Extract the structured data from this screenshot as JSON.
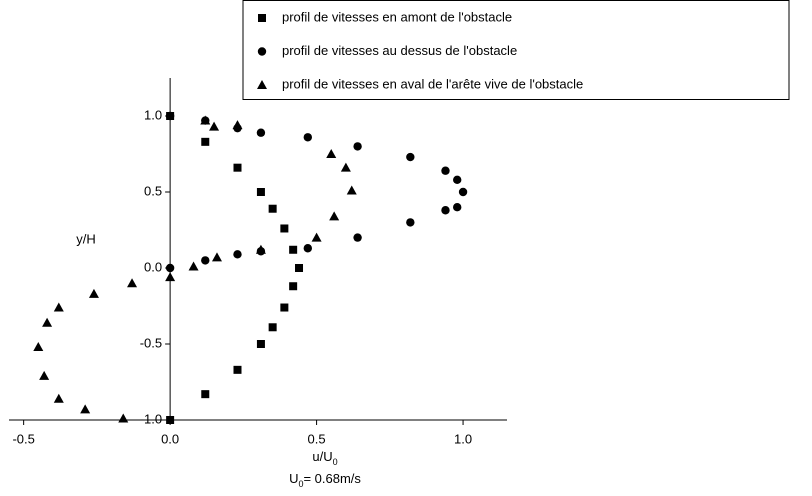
{
  "chart_data": {
    "type": "scatter",
    "xlabel": {
      "main": "u/U",
      "sub": "0"
    },
    "subtitle": {
      "main": "U",
      "sub": "0",
      "rest": "= 0.68m/s"
    },
    "ylabel": "y/H",
    "xlim": [
      -0.55,
      1.15
    ],
    "ylim": [
      -1.0,
      1.25
    ],
    "xticks": [
      -0.5,
      {
        "value": 0,
        "label": "0.0"
      },
      0.5,
      {
        "value": 1,
        "label": "1.0"
      }
    ],
    "yticks": [
      {
        "value": -1,
        "label": "-1.0"
      },
      -0.5,
      {
        "value": 0,
        "label": "0.0"
      },
      0.5,
      {
        "value": 1,
        "label": "1.0"
      }
    ],
    "legend": "top-right",
    "series": [
      {
        "name": "profil de vitesses en amont de l'obstacle",
        "color": "#000000",
        "marker": "square",
        "x": [
          0,
          0.12,
          0.23,
          0.31,
          0.35,
          0.39,
          0.42,
          0.44,
          0.42,
          0.39,
          0.35,
          0.31,
          0.23,
          0.12,
          0
        ],
        "values": [
          1.0,
          0.83,
          0.66,
          0.5,
          0.39,
          0.26,
          0.12,
          0.0,
          -0.12,
          -0.26,
          -0.39,
          -0.5,
          -0.67,
          -0.83,
          -1.0
        ]
      },
      {
        "name": "profil de vitesses au dessus de l'obstacle",
        "color": "#000000",
        "marker": "circle",
        "x": [
          0,
          0.12,
          0.23,
          0.31,
          0.47,
          0.64,
          0.82,
          0.94,
          0.98,
          1.0,
          0.98,
          0.94,
          0.82,
          0.64,
          0.47,
          0.31,
          0.23,
          0.12,
          0
        ],
        "values": [
          1.0,
          0.97,
          0.92,
          0.89,
          0.86,
          0.8,
          0.73,
          0.64,
          0.58,
          0.5,
          0.4,
          0.38,
          0.3,
          0.2,
          0.13,
          0.11,
          0.09,
          0.05,
          0.0
        ]
      },
      {
        "name": "profil de vitesses en aval de l'arête vive de l'obstacle",
        "color": "#000000",
        "marker": "triangle",
        "x": [
          0.12,
          0.15,
          0.23,
          0.55,
          0.6,
          0.62,
          0.56,
          0.5,
          0.31,
          0.16,
          0.08,
          0,
          -0.13,
          -0.26,
          -0.38,
          -0.42,
          -0.45,
          -0.43,
          -0.38,
          -0.29,
          -0.16
        ],
        "values": [
          0.97,
          0.93,
          0.94,
          0.75,
          0.66,
          0.51,
          0.34,
          0.2,
          0.12,
          0.07,
          0.01,
          -0.06,
          -0.1,
          -0.17,
          -0.26,
          -0.36,
          -0.52,
          -0.71,
          -0.86,
          -0.93,
          -0.99
        ]
      }
    ]
  }
}
